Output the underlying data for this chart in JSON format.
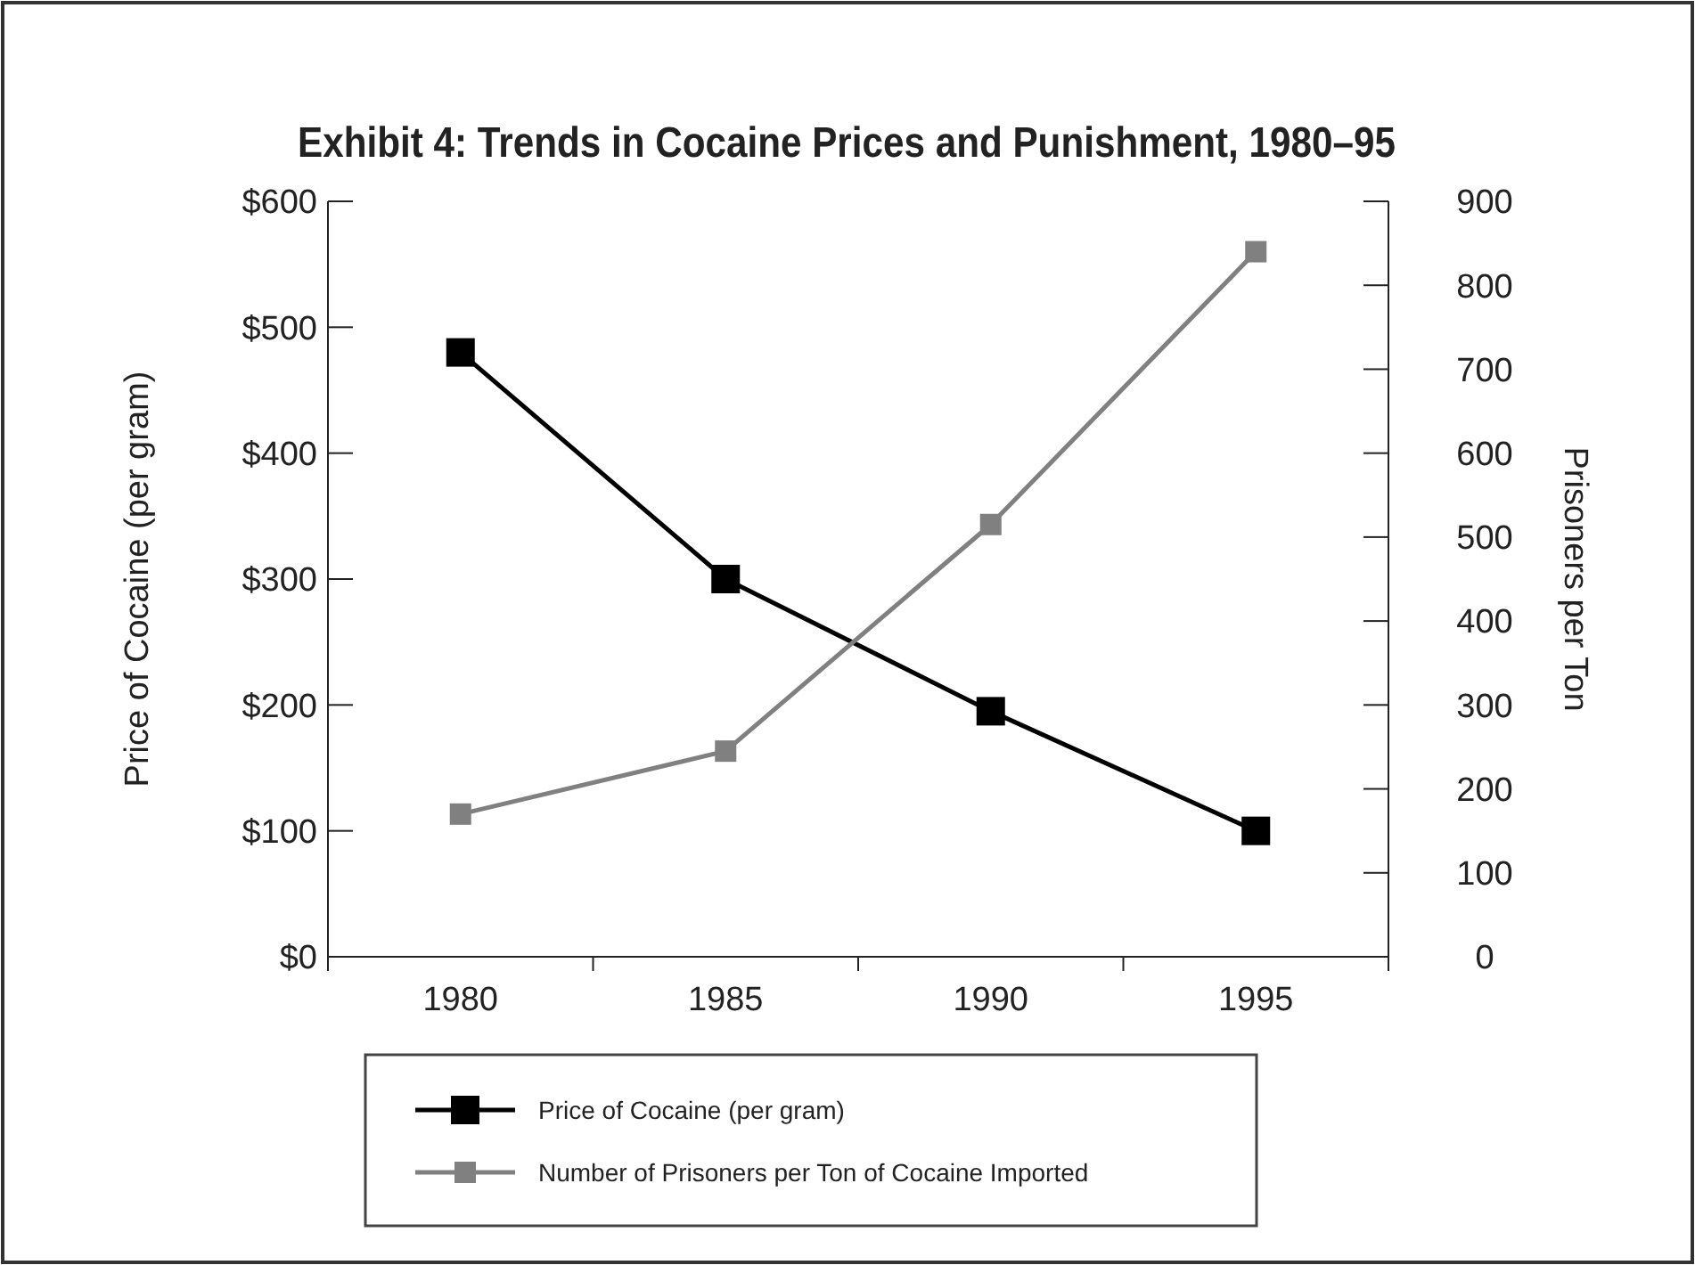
{
  "chart_data": {
    "type": "line",
    "title": "Exhibit 4: Trends in Cocaine Prices and Punishment, 1980–95",
    "ylabel": "Price of Cocaine (per gram)",
    "y2label": "Prisoners per Ton",
    "categories": [
      "1980",
      "1985",
      "1990",
      "1995"
    ],
    "series": [
      {
        "name": "Price of Cocaine (per gram)",
        "color": "#000000",
        "values": [
          480,
          300,
          195,
          100
        ]
      },
      {
        "name": "Number of Prisoners per Ton of Cocaine Imported",
        "color": "#808080",
        "values": [
          170,
          245,
          515,
          840
        ],
        "axis": "y2"
      }
    ],
    "ylim": [
      0,
      600
    ],
    "yticks": [
      {
        "value": 0,
        "label": "$0"
      },
      {
        "value": 100,
        "label": "$100"
      },
      {
        "value": 200,
        "label": "$200"
      },
      {
        "value": 300,
        "label": "$300"
      },
      {
        "value": 400,
        "label": "$400"
      },
      {
        "value": 500,
        "label": "$500"
      },
      {
        "value": 600,
        "label": "$600"
      }
    ],
    "y2lim": [
      0,
      900
    ],
    "y2ticks": [
      0,
      100,
      200,
      300,
      400,
      500,
      600,
      700,
      800,
      900
    ],
    "marker": "square",
    "line_style": "solid",
    "legend": "bottom",
    "grid": false
  }
}
